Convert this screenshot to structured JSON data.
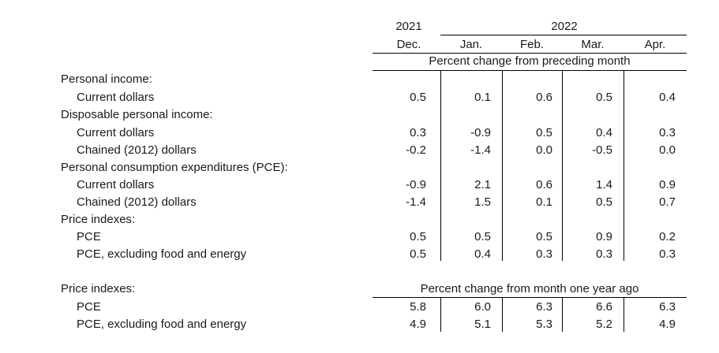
{
  "header": {
    "year_2021": "2021",
    "year_2022": "2022",
    "months": [
      "Dec.",
      "Jan.",
      "Feb.",
      "Mar.",
      "Apr."
    ],
    "section1_title": "Percent change from preceding month",
    "section2_title": "Percent change from month one year ago"
  },
  "section1": {
    "rows": [
      {
        "label": "Personal income:",
        "indent": false,
        "values": null
      },
      {
        "label": "Current dollars",
        "indent": true,
        "values": [
          "0.5",
          "0.1",
          "0.6",
          "0.5",
          "0.4"
        ]
      },
      {
        "label": "Disposable personal income:",
        "indent": false,
        "values": null
      },
      {
        "label": "Current dollars",
        "indent": true,
        "values": [
          "0.3",
          "-0.9",
          "0.5",
          "0.4",
          "0.3"
        ]
      },
      {
        "label": "Chained (2012) dollars",
        "indent": true,
        "values": [
          "-0.2",
          "-1.4",
          "0.0",
          "-0.5",
          "0.0"
        ]
      },
      {
        "label": "Personal consumption expenditures (PCE):",
        "indent": false,
        "values": null
      },
      {
        "label": "Current dollars",
        "indent": true,
        "values": [
          "-0.9",
          "2.1",
          "0.6",
          "1.4",
          "0.9"
        ]
      },
      {
        "label": "Chained (2012) dollars",
        "indent": true,
        "values": [
          "-1.4",
          "1.5",
          "0.1",
          "0.5",
          "0.7"
        ]
      },
      {
        "label": "Price indexes:",
        "indent": false,
        "values": null
      },
      {
        "label": "PCE",
        "indent": true,
        "values": [
          "0.5",
          "0.5",
          "0.5",
          "0.9",
          "0.2"
        ]
      },
      {
        "label": "PCE, excluding food and energy",
        "indent": true,
        "values": [
          "0.5",
          "0.4",
          "0.3",
          "0.3",
          "0.3"
        ]
      }
    ]
  },
  "section2": {
    "rows": [
      {
        "label": "Price indexes:",
        "indent": false,
        "values": null
      },
      {
        "label": "PCE",
        "indent": true,
        "values": [
          "5.8",
          "6.0",
          "6.3",
          "6.6",
          "6.3"
        ]
      },
      {
        "label": "PCE, excluding food and energy",
        "indent": true,
        "values": [
          "4.9",
          "5.1",
          "5.3",
          "5.2",
          "4.9"
        ]
      }
    ]
  }
}
